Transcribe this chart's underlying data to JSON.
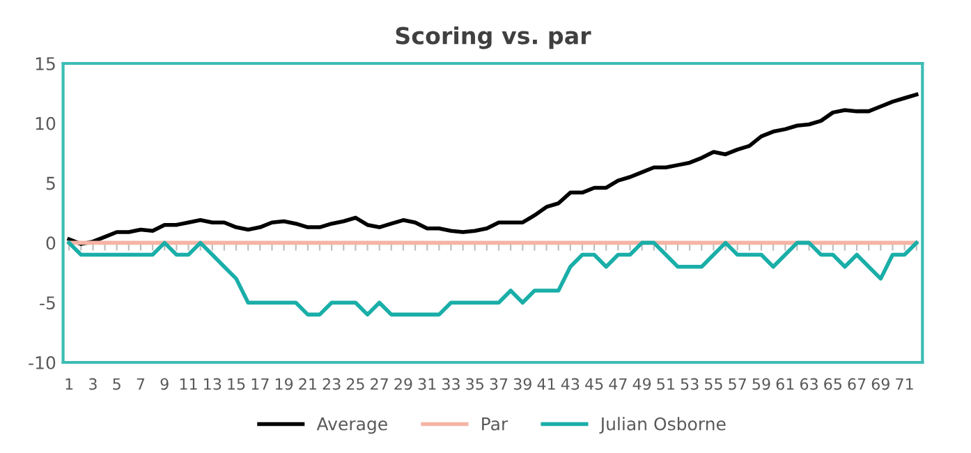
{
  "chart_data": {
    "type": "line",
    "title": "Scoring vs. par",
    "categories": [
      "1",
      null,
      "3",
      null,
      "5",
      null,
      "7",
      null,
      "9",
      null,
      "11",
      null,
      "13",
      null,
      "15",
      null,
      "17",
      null,
      "19",
      null,
      "21",
      null,
      "23",
      null,
      "25",
      null,
      "27",
      null,
      "29",
      null,
      "31",
      null,
      "33",
      null,
      "35",
      null,
      "37",
      null,
      "39",
      null,
      "41",
      null,
      "43",
      null,
      "45",
      null,
      "47",
      null,
      "49",
      null,
      "51",
      null,
      "53",
      null,
      "55",
      null,
      "57",
      null,
      "59",
      null,
      "61",
      null,
      "63",
      null,
      "65",
      null,
      "67",
      null,
      "69",
      null,
      "71",
      null
    ],
    "series": [
      {
        "name": "Average",
        "color": "#000000",
        "values": [
          0.3,
          -0.1,
          0.1,
          0.5,
          0.9,
          0.9,
          1.1,
          1.0,
          1.5,
          1.5,
          1.7,
          1.9,
          1.7,
          1.7,
          1.3,
          1.1,
          1.3,
          1.7,
          1.8,
          1.6,
          1.3,
          1.3,
          1.6,
          1.8,
          2.1,
          1.5,
          1.3,
          1.6,
          1.9,
          1.7,
          1.2,
          1.2,
          1.0,
          0.9,
          1.0,
          1.2,
          1.7,
          1.7,
          1.7,
          2.3,
          3.0,
          3.3,
          4.2,
          4.2,
          4.6,
          4.6,
          5.2,
          5.5,
          5.9,
          6.3,
          6.3,
          6.5,
          6.7,
          7.1,
          7.6,
          7.4,
          7.8,
          8.1,
          8.9,
          9.3,
          9.5,
          9.8,
          9.9,
          10.2,
          10.9,
          11.1,
          11.0,
          11.0,
          11.4,
          11.8,
          12.1,
          12.4
        ]
      },
      {
        "name": "Par",
        "color": "#f4b4a4",
        "values": [
          0,
          0,
          0,
          0,
          0,
          0,
          0,
          0,
          0,
          0,
          0,
          0,
          0,
          0,
          0,
          0,
          0,
          0,
          0,
          0,
          0,
          0,
          0,
          0,
          0,
          0,
          0,
          0,
          0,
          0,
          0,
          0,
          0,
          0,
          0,
          0,
          0,
          0,
          0,
          0,
          0,
          0,
          0,
          0,
          0,
          0,
          0,
          0,
          0,
          0,
          0,
          0,
          0,
          0,
          0,
          0,
          0,
          0,
          0,
          0,
          0,
          0,
          0,
          0,
          0,
          0,
          0,
          0,
          0,
          0,
          0,
          0
        ]
      },
      {
        "name": "Julian Osborne",
        "color": "#1aaea8",
        "values": [
          0,
          -1,
          -1,
          -1,
          -1,
          -1,
          -1,
          -1,
          0,
          -1,
          -1,
          0,
          -1,
          -2,
          -3,
          -5,
          -5,
          -5,
          -5,
          -5,
          -6,
          -6,
          -5,
          -5,
          -5,
          -6,
          -5,
          -6,
          -6,
          -6,
          -6,
          -6,
          -5,
          -5,
          -5,
          -5,
          -5,
          -4,
          -5,
          -4,
          -4,
          -4,
          -2,
          -1,
          -1,
          -2,
          -1,
          -1,
          0,
          0,
          -1,
          -2,
          -2,
          -2,
          -1,
          0,
          -1,
          -1,
          -1,
          -2,
          -1,
          0,
          0,
          -1,
          -1,
          -2,
          -1,
          -2,
          -3,
          -1,
          -1,
          0
        ]
      }
    ],
    "ylim": [
      -10,
      15
    ],
    "yticks": [
      -10,
      -5,
      0,
      5,
      10,
      15
    ],
    "grid": false,
    "legend": "bottom",
    "marker": "none",
    "line_style": "solid"
  }
}
